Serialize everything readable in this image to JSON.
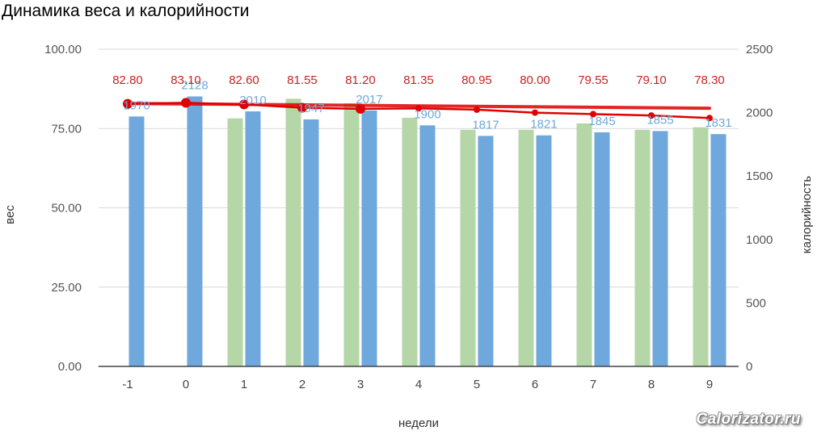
{
  "chart_data": {
    "type": "bar",
    "title": "Динамика веса и калорийности",
    "xlabel": "недели",
    "ylabel_left": "вес",
    "ylabel_right": "калорийность",
    "categories": [
      "-1",
      "0",
      "1",
      "2",
      "3",
      "4",
      "5",
      "6",
      "7",
      "8",
      "9"
    ],
    "y_left": {
      "min": 0,
      "max": 100,
      "ticks": [
        "0.00",
        "25.00",
        "50.00",
        "75.00",
        "100.00"
      ]
    },
    "y_right": {
      "min": 0,
      "max": 2500,
      "ticks": [
        "0",
        "500",
        "1000",
        "1500",
        "2000",
        "2500"
      ]
    },
    "grid": true,
    "series": [
      {
        "kind": "bar",
        "axis": "right",
        "color": "#b5d7a8",
        "values": [
          null,
          null,
          1955,
          2110,
          2075,
          1960,
          1865,
          1865,
          1915,
          1865,
          1885
        ]
      },
      {
        "kind": "bar",
        "axis": "right",
        "color": "#6fa8dc",
        "values": [
          1970,
          2128,
          2010,
          1947,
          2017,
          1900,
          1817,
          1821,
          1845,
          1855,
          1831
        ],
        "labels": [
          "1970",
          "2128",
          "2010",
          "1947",
          "2017",
          "1900",
          "1817",
          "1821",
          "1845",
          "1855",
          "1831"
        ],
        "label_color": "#6fa8dc"
      },
      {
        "kind": "line",
        "axis": "left",
        "color": "#e00000",
        "values": [
          82.8,
          83.1,
          82.6,
          81.55,
          81.2,
          81.35,
          80.95,
          80.0,
          79.55,
          79.1,
          78.3
        ],
        "labels": [
          "82.80",
          "83.10",
          "82.60",
          "81.55",
          "81.20",
          "81.35",
          "80.95",
          "80.00",
          "79.55",
          "79.10",
          "78.30"
        ],
        "label_color": "#cc2222"
      }
    ],
    "trend": {
      "kind": "line",
      "color": "#e00000",
      "start": 82.9,
      "end": 81.4
    }
  },
  "watermark": "Calorizator.ru"
}
